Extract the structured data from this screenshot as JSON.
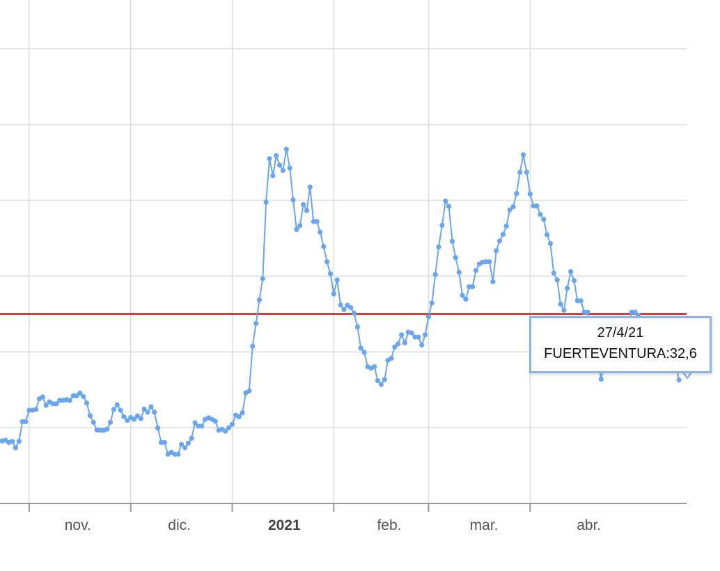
{
  "chart_data": {
    "type": "line",
    "x_tick_labels": [
      {
        "label": "nov.",
        "bold": false
      },
      {
        "label": "dic.",
        "bold": false
      },
      {
        "label": "2021",
        "bold": true
      },
      {
        "label": "feb.",
        "bold": false
      },
      {
        "label": "mar.",
        "bold": false
      },
      {
        "label": "abr.",
        "bold": false
      }
    ],
    "x_range": [
      "2020-10-09",
      "2021-04-28"
    ],
    "threshold": {
      "value": 50,
      "color": "#cc0000"
    },
    "series": [
      {
        "name": "FUERTEVENTURA",
        "color": "#6aa6ee",
        "points": [
          [
            "2020-10-09",
            16.5
          ],
          [
            "2020-10-10",
            16.7
          ],
          [
            "2020-10-11",
            16.1
          ],
          [
            "2020-10-12",
            16.4
          ],
          [
            "2020-10-13",
            14.7
          ],
          [
            "2020-10-14",
            16.4
          ],
          [
            "2020-10-15",
            21.6
          ],
          [
            "2020-10-16",
            21.6
          ],
          [
            "2020-10-17",
            24.6
          ],
          [
            "2020-10-18",
            24.6
          ],
          [
            "2020-10-19",
            24.8
          ],
          [
            "2020-10-20",
            27.6
          ],
          [
            "2020-10-21",
            28.1
          ],
          [
            "2020-10-22",
            25.9
          ],
          [
            "2020-10-23",
            26.8
          ],
          [
            "2020-10-24",
            26.3
          ],
          [
            "2020-10-25",
            26.3
          ],
          [
            "2020-10-26",
            27.2
          ],
          [
            "2020-10-27",
            27.2
          ],
          [
            "2020-10-28",
            27.4
          ],
          [
            "2020-10-29",
            27.2
          ],
          [
            "2020-10-30",
            28.4
          ],
          [
            "2020-10-31",
            28.4
          ],
          [
            "2020-11-01",
            29.1
          ],
          [
            "2020-11-02",
            28.2
          ],
          [
            "2020-11-03",
            26.5
          ],
          [
            "2020-11-04",
            23.2
          ],
          [
            "2020-11-05",
            21.4
          ],
          [
            "2020-11-06",
            19.4
          ],
          [
            "2020-11-07",
            19.3
          ],
          [
            "2020-11-08",
            19.3
          ],
          [
            "2020-11-09",
            19.6
          ],
          [
            "2020-11-10",
            21.4
          ],
          [
            "2020-11-11",
            24.8
          ],
          [
            "2020-11-12",
            26.0
          ],
          [
            "2020-11-13",
            24.6
          ],
          [
            "2020-11-14",
            22.9
          ],
          [
            "2020-11-15",
            21.9
          ],
          [
            "2020-11-16",
            22.7
          ],
          [
            "2020-11-17",
            22.2
          ],
          [
            "2020-11-18",
            23.1
          ],
          [
            "2020-11-19",
            22.4
          ],
          [
            "2020-11-20",
            24.9
          ],
          [
            "2020-11-21",
            24.1
          ],
          [
            "2020-11-22",
            25.5
          ],
          [
            "2020-11-23",
            24.1
          ],
          [
            "2020-11-24",
            19.9
          ],
          [
            "2020-11-25",
            16.1
          ],
          [
            "2020-11-26",
            16.1
          ],
          [
            "2020-11-27",
            13.0
          ],
          [
            "2020-11-28",
            13.5
          ],
          [
            "2020-11-29",
            13.0
          ],
          [
            "2020-11-30",
            13.0
          ],
          [
            "2020-12-01",
            15.6
          ],
          [
            "2020-12-02",
            14.7
          ],
          [
            "2020-12-03",
            15.9
          ],
          [
            "2020-12-04",
            17.2
          ],
          [
            "2020-12-05",
            21.3
          ],
          [
            "2020-12-06",
            20.4
          ],
          [
            "2020-12-07",
            20.4
          ],
          [
            "2020-12-08",
            22.2
          ],
          [
            "2020-12-09",
            22.6
          ],
          [
            "2020-12-10",
            22.2
          ],
          [
            "2020-12-11",
            21.7
          ],
          [
            "2020-12-12",
            19.3
          ],
          [
            "2020-12-13",
            19.6
          ],
          [
            "2020-12-14",
            19.1
          ],
          [
            "2020-12-15",
            20.0
          ],
          [
            "2020-12-16",
            20.9
          ],
          [
            "2020-12-17",
            23.3
          ],
          [
            "2020-12-18",
            22.9
          ],
          [
            "2020-12-19",
            23.9
          ],
          [
            "2020-12-20",
            29.2
          ],
          [
            "2020-12-21",
            29.7
          ],
          [
            "2020-12-22",
            41.5
          ],
          [
            "2020-12-23",
            47.5
          ],
          [
            "2020-12-24",
            53.7
          ],
          [
            "2020-12-25",
            59.3
          ],
          [
            "2020-12-26",
            79.5
          ],
          [
            "2020-12-27",
            91.0
          ],
          [
            "2020-12-28",
            86.5
          ],
          [
            "2020-12-29",
            91.8
          ],
          [
            "2020-12-30",
            89.3
          ],
          [
            "2020-12-31",
            87.9
          ],
          [
            "2021-01-01",
            93.5
          ],
          [
            "2021-01-02",
            88.5
          ],
          [
            "2021-01-03",
            80.1
          ],
          [
            "2021-01-04",
            72.3
          ],
          [
            "2021-01-05",
            73.3
          ],
          [
            "2021-01-06",
            78.9
          ],
          [
            "2021-01-07",
            77.3
          ],
          [
            "2021-01-08",
            83.5
          ],
          [
            "2021-01-09",
            74.4
          ],
          [
            "2021-01-10",
            74.4
          ],
          [
            "2021-01-11",
            71.6
          ],
          [
            "2021-01-12",
            67.8
          ],
          [
            "2021-01-13",
            63.8
          ],
          [
            "2021-01-14",
            60.6
          ],
          [
            "2021-01-15",
            55.3
          ],
          [
            "2021-01-16",
            59.0
          ],
          [
            "2021-01-17",
            52.4
          ],
          [
            "2021-01-18",
            51.2
          ],
          [
            "2021-01-19",
            52.3
          ],
          [
            "2021-01-20",
            51.7
          ],
          [
            "2021-01-21",
            50.2
          ],
          [
            "2021-01-22",
            46.6
          ],
          [
            "2021-01-23",
            41.0
          ],
          [
            "2021-01-24",
            39.9
          ],
          [
            "2021-01-25",
            36.1
          ],
          [
            "2021-01-26",
            35.7
          ],
          [
            "2021-01-27",
            36.1
          ],
          [
            "2021-01-28",
            32.4
          ],
          [
            "2021-01-29",
            31.4
          ],
          [
            "2021-01-30",
            32.7
          ],
          [
            "2021-01-31",
            37.8
          ],
          [
            "2021-02-01",
            38.3
          ],
          [
            "2021-02-02",
            41.3
          ],
          [
            "2021-02-03",
            42.1
          ],
          [
            "2021-02-04",
            44.5
          ],
          [
            "2021-02-05",
            42.4
          ],
          [
            "2021-02-06",
            45.2
          ],
          [
            "2021-02-07",
            45.0
          ],
          [
            "2021-02-08",
            43.9
          ],
          [
            "2021-02-09",
            43.9
          ],
          [
            "2021-02-10",
            41.8
          ],
          [
            "2021-02-11",
            44.5
          ],
          [
            "2021-02-12",
            49.3
          ],
          [
            "2021-02-13",
            52.9
          ],
          [
            "2021-02-14",
            60.4
          ],
          [
            "2021-02-15",
            67.7
          ],
          [
            "2021-02-16",
            73.4
          ],
          [
            "2021-02-17",
            79.8
          ],
          [
            "2021-02-18",
            78.4
          ],
          [
            "2021-02-19",
            69.2
          ],
          [
            "2021-02-20",
            64.9
          ],
          [
            "2021-02-21",
            61.0
          ],
          [
            "2021-02-22",
            54.9
          ],
          [
            "2021-02-23",
            53.9
          ],
          [
            "2021-02-24",
            57.2
          ],
          [
            "2021-02-25",
            57.2
          ],
          [
            "2021-02-26",
            61.5
          ],
          [
            "2021-02-27",
            63.2
          ],
          [
            "2021-02-28",
            63.7
          ],
          [
            "2021-03-01",
            63.8
          ],
          [
            "2021-03-02",
            63.8
          ],
          [
            "2021-03-03",
            58.5
          ],
          [
            "2021-03-04",
            66.7
          ],
          [
            "2021-03-05",
            69.3
          ],
          [
            "2021-03-06",
            71.0
          ],
          [
            "2021-03-07",
            73.2
          ],
          [
            "2021-03-08",
            77.5
          ],
          [
            "2021-03-09",
            78.3
          ],
          [
            "2021-03-10",
            81.8
          ],
          [
            "2021-03-11",
            87.4
          ],
          [
            "2021-03-12",
            92.0
          ],
          [
            "2021-03-13",
            87.4
          ],
          [
            "2021-03-14",
            81.7
          ],
          [
            "2021-03-15",
            78.5
          ],
          [
            "2021-03-16",
            78.5
          ],
          [
            "2021-03-17",
            76.3
          ],
          [
            "2021-03-18",
            75.0
          ],
          [
            "2021-03-19",
            70.9
          ],
          [
            "2021-03-20",
            68.6
          ],
          [
            "2021-03-21",
            60.8
          ],
          [
            "2021-03-22",
            59.0
          ],
          [
            "2021-03-23",
            52.6
          ],
          [
            "2021-03-24",
            51.0
          ],
          [
            "2021-03-25",
            56.8
          ],
          [
            "2021-03-26",
            61.2
          ],
          [
            "2021-03-27",
            58.8
          ],
          [
            "2021-03-28",
            53.5
          ],
          [
            "2021-03-29",
            53.5
          ],
          [
            "2021-03-30",
            50.5
          ],
          [
            "2021-03-31",
            50.5
          ],
          [
            "2021-04-01",
            45.2
          ],
          [
            "2021-04-02",
            43.3
          ],
          [
            "2021-04-03",
            37.6
          ],
          [
            "2021-04-04",
            32.8
          ],
          [
            "2021-04-05",
            37.0
          ],
          [
            "2021-04-06",
            37.2
          ],
          [
            "2021-04-07",
            43.7
          ],
          [
            "2021-04-08",
            40.6
          ],
          [
            "2021-04-09",
            41.3
          ],
          [
            "2021-04-10",
            40.7
          ],
          [
            "2021-04-11",
            43.7
          ],
          [
            "2021-04-12",
            44.6
          ],
          [
            "2021-04-13",
            50.5
          ],
          [
            "2021-04-14",
            50.5
          ],
          [
            "2021-04-15",
            49.6
          ],
          [
            "2021-04-16",
            48.0
          ],
          [
            "2021-04-17",
            43.6
          ],
          [
            "2021-04-18",
            46.8
          ],
          [
            "2021-04-19",
            44.6
          ],
          [
            "2021-04-20",
            41.3
          ],
          [
            "2021-04-21",
            41.0
          ],
          [
            "2021-04-22",
            38.3
          ],
          [
            "2021-04-23",
            38.5
          ],
          [
            "2021-04-24",
            40.3
          ],
          [
            "2021-04-25",
            41.2
          ],
          [
            "2021-04-26",
            37.0
          ],
          [
            "2021-04-27",
            32.6
          ]
        ]
      }
    ],
    "x_axis": {
      "label": "",
      "type": "date"
    },
    "y_axis": {
      "label": "",
      "range": [
        0,
        120
      ],
      "gridlines": [
        0,
        20,
        40,
        60,
        80,
        100,
        120
      ],
      "tick_labels_visible": false
    },
    "grid": true,
    "tooltip": {
      "date": "27/4/21",
      "series_label": "FUERTEVENTURA:32,6"
    }
  }
}
